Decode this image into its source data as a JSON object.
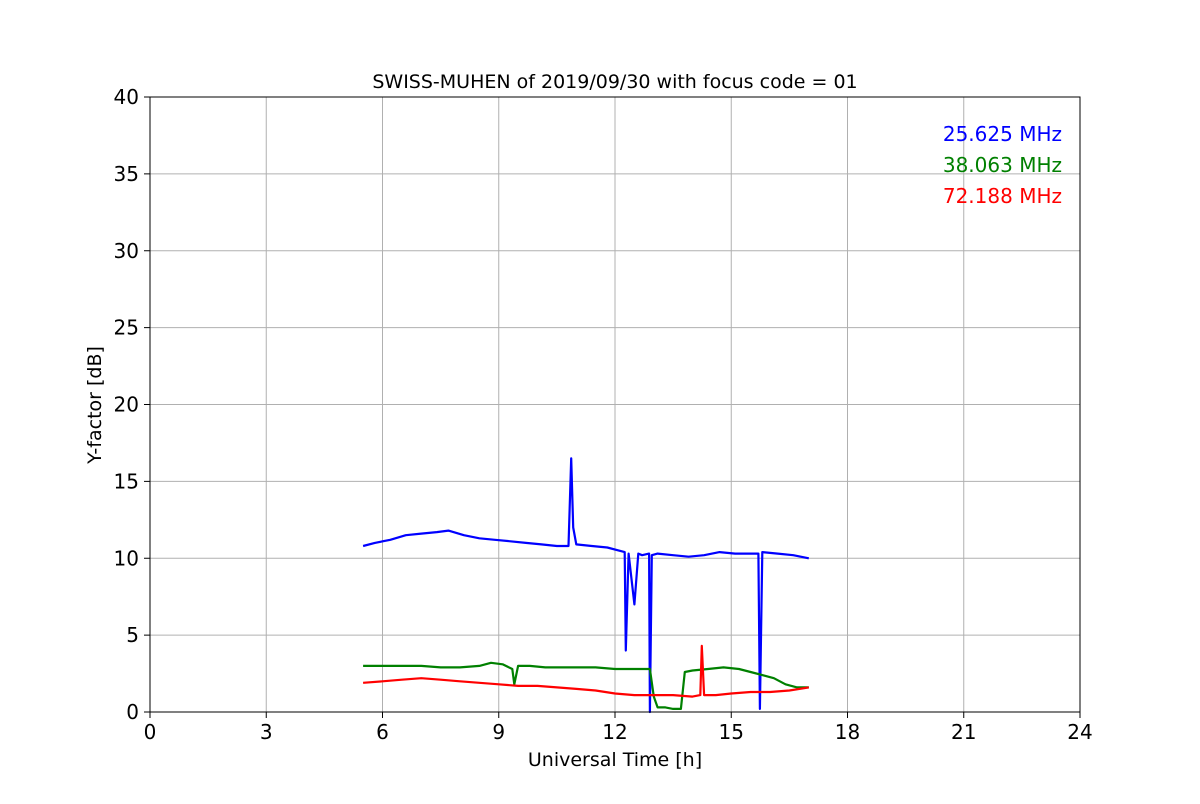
{
  "chart_data": {
    "type": "line",
    "title": "SWISS-MUHEN of 2019/09/30 with focus code = 01",
    "xlabel": "Universal Time [h]",
    "ylabel": "Y-factor [dB]",
    "xlim": [
      0,
      24
    ],
    "ylim": [
      0,
      40
    ],
    "xticks": [
      0,
      3,
      6,
      9,
      12,
      15,
      18,
      21,
      24
    ],
    "yticks": [
      0,
      5,
      10,
      15,
      20,
      25,
      30,
      35,
      40
    ],
    "grid": true,
    "legend_position": "top-right",
    "series": [
      {
        "name": "25.625 MHz",
        "color": "#0000ff",
        "x": [
          5.5,
          5.8,
          6.2,
          6.6,
          7.0,
          7.4,
          7.7,
          8.1,
          8.5,
          8.9,
          9.3,
          9.7,
          10.1,
          10.5,
          10.8,
          10.87,
          10.92,
          11.0,
          11.4,
          11.8,
          12.1,
          12.25,
          12.28,
          12.35,
          12.5,
          12.6,
          12.7,
          12.88,
          12.9,
          12.95,
          13.1,
          13.5,
          13.9,
          14.3,
          14.7,
          15.1,
          15.5,
          15.7,
          15.74,
          15.8,
          16.2,
          16.6,
          17.0
        ],
        "y": [
          10.8,
          11.0,
          11.2,
          11.5,
          11.6,
          11.7,
          11.8,
          11.5,
          11.3,
          11.2,
          11.1,
          11.0,
          10.9,
          10.8,
          10.8,
          16.5,
          12.0,
          10.9,
          10.8,
          10.7,
          10.5,
          10.4,
          4.0,
          10.3,
          7.0,
          10.3,
          10.2,
          10.3,
          0.0,
          10.2,
          10.3,
          10.2,
          10.1,
          10.2,
          10.4,
          10.3,
          10.3,
          10.3,
          0.2,
          10.4,
          10.3,
          10.2,
          10.0
        ]
      },
      {
        "name": "38.063 MHz",
        "color": "#008000",
        "x": [
          5.5,
          6.0,
          6.5,
          7.0,
          7.5,
          8.0,
          8.5,
          8.8,
          9.1,
          9.35,
          9.4,
          9.5,
          9.8,
          10.2,
          10.6,
          11.0,
          11.5,
          12.0,
          12.5,
          12.9,
          13.0,
          13.1,
          13.3,
          13.5,
          13.7,
          13.8,
          14.0,
          14.4,
          14.8,
          15.2,
          15.5,
          15.8,
          16.1,
          16.4,
          16.7,
          17.0
        ],
        "y": [
          3.0,
          3.0,
          3.0,
          3.0,
          2.9,
          2.9,
          3.0,
          3.2,
          3.1,
          2.8,
          1.8,
          3.0,
          3.0,
          2.9,
          2.9,
          2.9,
          2.9,
          2.8,
          2.8,
          2.8,
          1.0,
          0.3,
          0.3,
          0.2,
          0.2,
          2.6,
          2.7,
          2.8,
          2.9,
          2.8,
          2.6,
          2.4,
          2.2,
          1.8,
          1.6,
          1.6
        ]
      },
      {
        "name": "72.188 MHz",
        "color": "#ff0000",
        "x": [
          5.5,
          6.0,
          6.5,
          7.0,
          7.5,
          8.0,
          8.5,
          9.0,
          9.5,
          10.0,
          10.5,
          11.0,
          11.5,
          12.0,
          12.5,
          13.0,
          13.5,
          14.0,
          14.2,
          14.24,
          14.3,
          14.6,
          15.0,
          15.5,
          16.0,
          16.5,
          17.0
        ],
        "y": [
          1.9,
          2.0,
          2.1,
          2.2,
          2.1,
          2.0,
          1.9,
          1.8,
          1.7,
          1.7,
          1.6,
          1.5,
          1.4,
          1.2,
          1.1,
          1.1,
          1.1,
          1.0,
          1.1,
          4.3,
          1.1,
          1.1,
          1.2,
          1.3,
          1.3,
          1.4,
          1.6
        ]
      }
    ]
  }
}
